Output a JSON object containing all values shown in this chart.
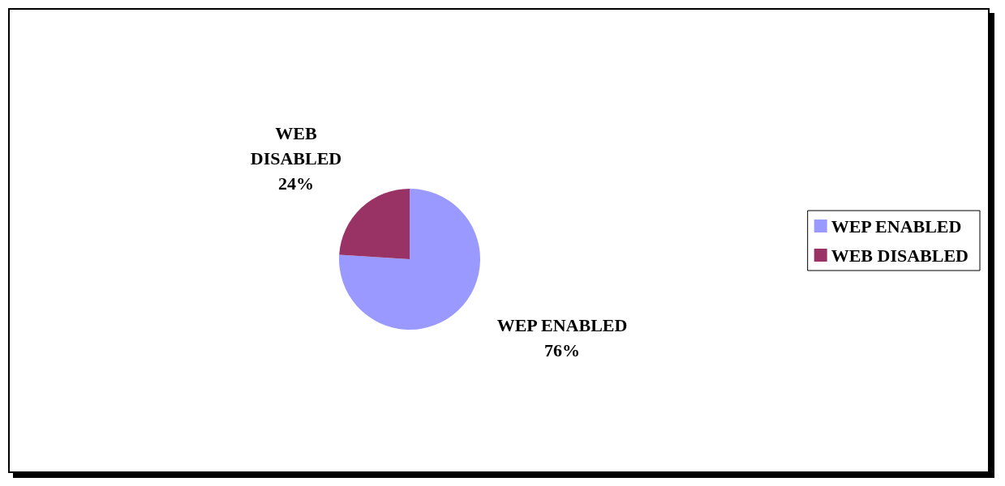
{
  "chart_data": {
    "type": "pie",
    "categories": [
      "WEP ENABLED",
      "WEB DISABLED"
    ],
    "values": [
      76,
      24
    ],
    "colors": [
      "#9999ff",
      "#993366"
    ],
    "value_labels": [
      "76%",
      "24%"
    ],
    "legend": "right"
  }
}
